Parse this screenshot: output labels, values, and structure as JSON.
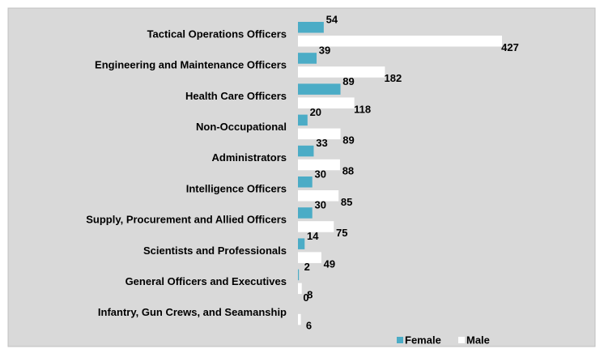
{
  "chart_data": {
    "type": "bar",
    "orientation": "horizontal",
    "categories": [
      "Tactical Operations Officers",
      "Engineering and Maintenance Officers",
      "Health Care Officers",
      "Non-Occupational",
      "Administrators",
      "Intelligence Officers",
      "Supply, Procurement and Allied Officers",
      "Scientists and Professionals",
      "General Officers and Executives",
      "Infantry, Gun Crews, and Seamanship"
    ],
    "series": [
      {
        "name": "Female",
        "color": "#4bacc6",
        "values": [
          54,
          39,
          89,
          20,
          33,
          30,
          30,
          14,
          2,
          0
        ]
      },
      {
        "name": "Male",
        "color": "#ffffff",
        "values": [
          427,
          182,
          118,
          89,
          88,
          85,
          75,
          49,
          8,
          6
        ]
      }
    ],
    "legend": "bottom-right",
    "grid": false
  }
}
